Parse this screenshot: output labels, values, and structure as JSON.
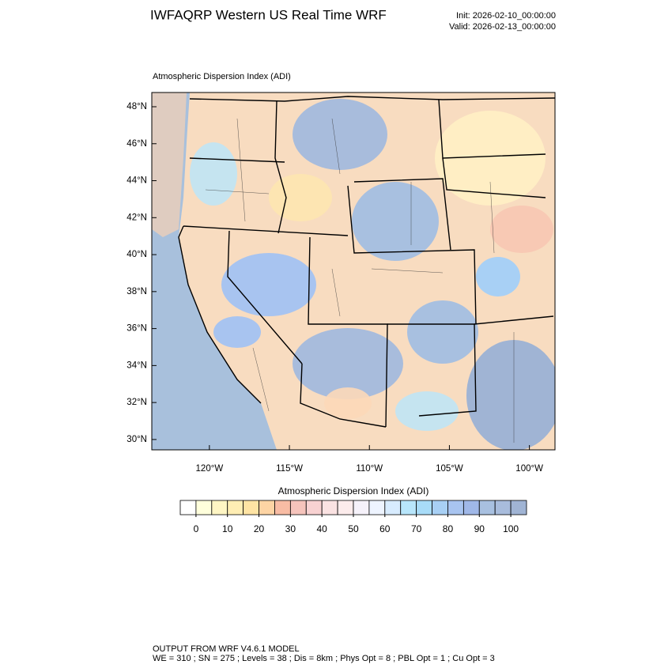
{
  "header": {
    "title": "IWFAQRP Western US Real Time WRF",
    "init": "Init: 2026-02-10_00:00:00",
    "valid": "Valid: 2026-02-13_00:00:00"
  },
  "map": {
    "title": "Atmospheric Dispersion Index   (ADI)",
    "lat_lim": [
      29.44,
      48.77
    ],
    "lon_lim": [
      -123.6,
      -98.4
    ],
    "lat_ticks": [
      {
        "value": 30,
        "label": "30°N"
      },
      {
        "value": 32,
        "label": "32°N"
      },
      {
        "value": 34,
        "label": "34°N"
      },
      {
        "value": 36,
        "label": "36°N"
      },
      {
        "value": 38,
        "label": "38°N"
      },
      {
        "value": 40,
        "label": "40°N"
      },
      {
        "value": 42,
        "label": "42°N"
      },
      {
        "value": 44,
        "label": "44°N"
      },
      {
        "value": 46,
        "label": "46°N"
      },
      {
        "value": 48,
        "label": "48°N"
      }
    ],
    "lon_ticks": [
      {
        "value": -120,
        "label": "120°W"
      },
      {
        "value": -115,
        "label": "115°W"
      },
      {
        "value": -110,
        "label": "110°W"
      },
      {
        "value": -105,
        "label": "105°W"
      },
      {
        "value": -100,
        "label": "100°W"
      }
    ]
  },
  "colorbar": {
    "title": "Atmospheric Dispersion Index  (ADI)",
    "range": [
      -5,
      105
    ],
    "colors": [
      "#ffffff",
      "#ffffdc",
      "#fff6c4",
      "#ffeeb4",
      "#ffe4a4",
      "#fdd4a4",
      "#f8bca4",
      "#f6c4bc",
      "#f8d2d2",
      "#fae2e2",
      "#fcecec",
      "#f6f2fa",
      "#eef4ff",
      "#d8ecff",
      "#b8e6fb",
      "#a8dcf8",
      "#a8d0f5",
      "#a8c4f0",
      "#a0b8e8",
      "#a8c0e0",
      "#a8bcdc",
      "#a0b4d4"
    ],
    "ticks": [
      0,
      10,
      20,
      30,
      40,
      50,
      60,
      70,
      80,
      90,
      100
    ]
  },
  "footer": {
    "line1": "OUTPUT FROM WRF V4.6.1 MODEL",
    "line2": "WE = 310 ; SN = 275 ; Levels = 38 ; Dis = 8km ; Phys Opt = 8 ; PBL Opt = 1 ; Cu Opt = 3"
  }
}
